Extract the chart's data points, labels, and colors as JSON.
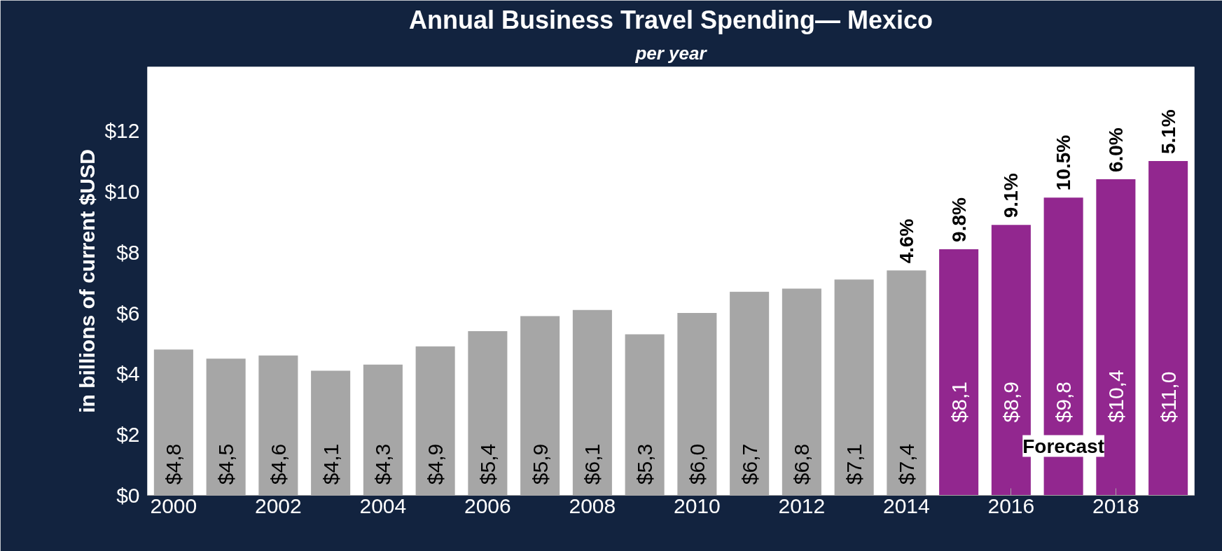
{
  "chart_data": {
    "type": "bar",
    "title": "Annual Business Travel Spending— Mexico",
    "subtitle": "per year",
    "ylabel": "in billions of current $USD",
    "x": [
      2000,
      2001,
      2002,
      2003,
      2004,
      2005,
      2006,
      2007,
      2008,
      2009,
      2010,
      2011,
      2012,
      2013,
      2014,
      2015,
      2016,
      2017,
      2018,
      2019
    ],
    "values": [
      4.8,
      4.5,
      4.6,
      4.1,
      4.3,
      4.9,
      5.4,
      5.9,
      6.1,
      5.3,
      6.0,
      6.7,
      6.8,
      7.1,
      7.4,
      8.1,
      8.9,
      9.8,
      10.4,
      11.0
    ],
    "value_labels": [
      "$4,8",
      "$4,5",
      "$4,6",
      "$4,1",
      "$4,3",
      "$4,9",
      "$5,4",
      "$5,9",
      "$6,1",
      "$5,3",
      "$6,0",
      "$6,7",
      "$6,8",
      "$7,1",
      "$7,4",
      "$8,1",
      "$8,9",
      "$9,8",
      "$10,4",
      "$11,0"
    ],
    "colors": [
      "#a6a6a6",
      "#a6a6a6",
      "#a6a6a6",
      "#a6a6a6",
      "#a6a6a6",
      "#a6a6a6",
      "#a6a6a6",
      "#a6a6a6",
      "#a6a6a6",
      "#a6a6a6",
      "#a6a6a6",
      "#a6a6a6",
      "#a6a6a6",
      "#a6a6a6",
      "#a6a6a6",
      "#92278f",
      "#92278f",
      "#92278f",
      "#92278f",
      "#92278f"
    ],
    "xlim": [
      1999.5,
      2019.5
    ],
    "xticks": [
      2000,
      2002,
      2004,
      2006,
      2008,
      2010,
      2012,
      2014,
      2016,
      2018
    ],
    "ylim": [
      0,
      14.1
    ],
    "yticks": [
      {
        "value": 0,
        "label": "$0"
      },
      {
        "value": 2,
        "label": "$2"
      },
      {
        "value": 4,
        "label": "$4"
      },
      {
        "value": 6,
        "label": "$6"
      },
      {
        "value": 8,
        "label": "$8"
      },
      {
        "value": 10,
        "label": "$10"
      },
      {
        "value": 12,
        "label": "$12"
      }
    ],
    "annotations": [
      {
        "text": "4.6%",
        "x": 2014,
        "y": 7.4
      },
      {
        "text": "9.8%",
        "x": 2015,
        "y": 8.1
      },
      {
        "text": "9.1%",
        "x": 2016,
        "y": 8.9
      },
      {
        "text": "10.5%",
        "x": 2017,
        "y": 9.8
      },
      {
        "text": "6.0%",
        "x": 2018,
        "y": 10.4
      },
      {
        "text": "5.1%",
        "x": 2019,
        "y": 11.0
      },
      "Forecast"
    ],
    "grid": false
  }
}
